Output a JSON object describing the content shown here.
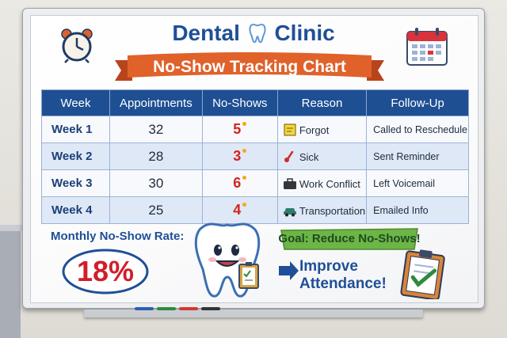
{
  "header": {
    "title_part1": "Dental",
    "title_part2": "Clinic",
    "subtitle": "No-Show Tracking Chart"
  },
  "table": {
    "columns": [
      "Week",
      "Appointments",
      "No-Shows",
      "Reason",
      "Follow-Up"
    ],
    "rows": [
      {
        "week": "Week 1",
        "appointments": "32",
        "no_shows": "5",
        "reason": "Forgot",
        "reason_icon": "sticky-note-icon",
        "follow_up": "Called to Reschedule"
      },
      {
        "week": "Week 2",
        "appointments": "28",
        "no_shows": "3",
        "reason": "Sick",
        "reason_icon": "thermometer-icon",
        "follow_up": "Sent Reminder"
      },
      {
        "week": "Week 3",
        "appointments": "30",
        "no_shows": "6",
        "reason": "Work Conflict",
        "reason_icon": "briefcase-icon",
        "follow_up": "Left Voicemail"
      },
      {
        "week": "Week 4",
        "appointments": "25",
        "no_shows": "4",
        "reason": "Transportation",
        "reason_icon": "car-icon",
        "follow_up": "Emailed Info"
      }
    ]
  },
  "summary": {
    "rate_label": "Monthly No-Show Rate:",
    "rate_value": "18%"
  },
  "goal": {
    "banner": "Goal: Reduce No-Shows!",
    "line1": "Improve",
    "line2": "Attendance!"
  },
  "decor": {
    "icons": [
      "alarm-clock-icon",
      "tooth-icon",
      "calendar-icon",
      "tooth-mascot",
      "clipboard-check-icon",
      "arrow-icon"
    ],
    "colors": {
      "navy": "#1e4f93",
      "banner_orange": "#e0612a",
      "red": "#d01f2a",
      "goal_green": "#5da83a"
    },
    "markers": [
      "#2f5fb3",
      "#2e8b3d",
      "#d13a2f",
      "#333333"
    ]
  }
}
